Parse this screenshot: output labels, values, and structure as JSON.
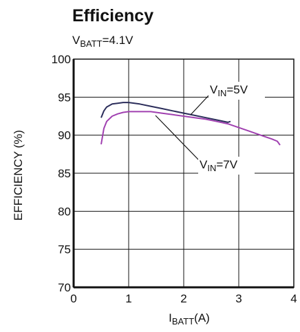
{
  "chart_data": {
    "type": "line",
    "title": "Efficiency",
    "subtitle": {
      "main": "V",
      "sub": "BATT",
      "rest": "=4.1V"
    },
    "xlabel": {
      "main": "I",
      "sub": "BATT",
      "rest": "(A)"
    },
    "ylabel": "EFFICIENCY (%)",
    "xlim": [
      0,
      4
    ],
    "ylim": [
      70,
      100
    ],
    "xticks": [
      "0",
      "1",
      "2",
      "3",
      "4"
    ],
    "yticks": [
      "70",
      "75",
      "80",
      "85",
      "90",
      "95",
      "100"
    ],
    "grid": true,
    "series": [
      {
        "name": {
          "main": "V",
          "sub": "IN",
          "rest": "=5V"
        },
        "color": "#2b2d5a",
        "x": [
          0.5,
          0.55,
          0.6,
          0.7,
          0.8,
          0.9,
          1.0,
          1.2,
          1.4,
          1.6,
          1.8,
          2.0,
          2.2,
          2.4,
          2.6,
          2.8,
          2.85
        ],
        "y": [
          92.3,
          93.2,
          93.7,
          94.1,
          94.2,
          94.3,
          94.3,
          94.1,
          93.8,
          93.5,
          93.2,
          92.9,
          92.6,
          92.3,
          92.0,
          91.7,
          91.8
        ]
      },
      {
        "name": {
          "main": "V",
          "sub": "IN",
          "rest": "=7V"
        },
        "color": "#a040b0",
        "x": [
          0.5,
          0.55,
          0.6,
          0.7,
          0.8,
          0.9,
          1.0,
          1.2,
          1.4,
          1.6,
          1.8,
          2.0,
          2.2,
          2.4,
          2.6,
          2.8,
          3.0,
          3.2,
          3.4,
          3.6,
          3.7,
          3.75
        ],
        "y": [
          88.8,
          90.9,
          91.8,
          92.5,
          92.8,
          93.0,
          93.1,
          93.1,
          93.1,
          92.9,
          92.7,
          92.5,
          92.3,
          92.1,
          91.8,
          91.5,
          91.0,
          90.5,
          90.0,
          89.5,
          89.2,
          88.7
        ]
      }
    ],
    "annotations": [
      {
        "series": 0,
        "text": {
          "main": "V",
          "sub": "IN",
          "rest": "=5V"
        }
      },
      {
        "series": 1,
        "text": {
          "main": "V",
          "sub": "IN",
          "rest": "=7V"
        }
      }
    ]
  }
}
